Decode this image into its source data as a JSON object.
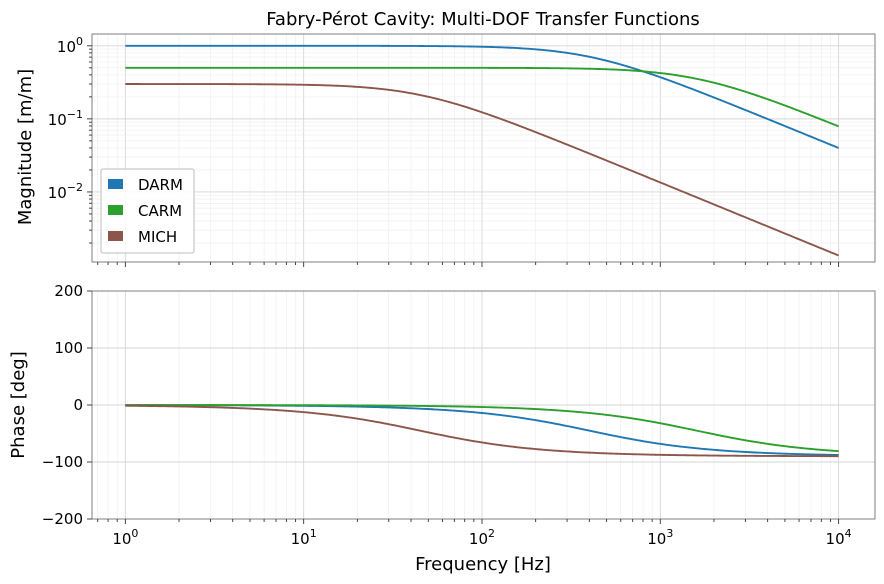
{
  "chart_data": [
    {
      "type": "line",
      "title": "Fabry-Pérot Cavity: Multi-DOF Transfer Functions",
      "xlabel": "",
      "ylabel": "Magnitude [m/m]",
      "xscale": "log",
      "yscale": "log",
      "xlim": [
        0.65,
        16000
      ],
      "ylim": [
        0.0011,
        1.45
      ],
      "yticks": [
        {
          "base": "10",
          "exp": "0",
          "value": 1
        },
        {
          "base": "10",
          "exp": "−1",
          "value": 0.1
        },
        {
          "base": "10",
          "exp": "−2",
          "value": 0.01
        }
      ],
      "grid": true,
      "legend": "lower-left",
      "series": [
        {
          "name": "DARM",
          "color": "#1f77b4",
          "gain": 1.0,
          "pole_hz": 400,
          "order": 1
        },
        {
          "name": "CARM",
          "color": "#2ca02c",
          "gain": 0.5,
          "pole_hz": 1600,
          "order": 1
        },
        {
          "name": "MICH",
          "color": "#8c564b",
          "gain": 0.3,
          "pole_hz": 45,
          "order": 1
        }
      ],
      "x": [
        1,
        10,
        100,
        300,
        1000,
        3000,
        10000
      ],
      "values_sampled": {
        "DARM": [
          1.0,
          1.0,
          0.97,
          0.8,
          0.37,
          0.13,
          0.04
        ],
        "CARM": [
          0.5,
          0.5,
          0.499,
          0.49,
          0.42,
          0.24,
          0.08
        ],
        "MICH": [
          0.3,
          0.29,
          0.12,
          0.045,
          0.0135,
          0.0045,
          0.00135
        ]
      }
    },
    {
      "type": "line",
      "title": "",
      "xlabel": "Frequency [Hz]",
      "ylabel": "Phase [deg]",
      "xscale": "log",
      "xlim": [
        0.65,
        16000
      ],
      "ylim": [
        -200,
        200
      ],
      "yticks": [
        "200",
        "100",
        "0",
        "−100",
        "−200"
      ],
      "xticks": [
        {
          "base": "10",
          "exp": "0",
          "value": 1
        },
        {
          "base": "10",
          "exp": "1",
          "value": 10
        },
        {
          "base": "10",
          "exp": "2",
          "value": 100
        },
        {
          "base": "10",
          "exp": "3",
          "value": 1000
        },
        {
          "base": "10",
          "exp": "4",
          "value": 10000
        }
      ],
      "grid": true,
      "series": [
        {
          "name": "DARM",
          "color": "#1f77b4",
          "pole_hz": 400
        },
        {
          "name": "CARM",
          "color": "#2ca02c",
          "pole_hz": 1600
        },
        {
          "name": "MICH",
          "color": "#8c564b",
          "pole_hz": 45
        }
      ],
      "x": [
        1,
        10,
        100,
        300,
        1000,
        3000,
        10000
      ],
      "values_sampled": {
        "DARM": [
          0,
          -1.4,
          -14,
          -37,
          -68,
          -82,
          -88
        ],
        "CARM": [
          0,
          -0.4,
          -3.6,
          -10.6,
          -32,
          -62,
          -81
        ],
        "MICH": [
          0,
          -12.5,
          -65,
          -81,
          -87,
          -89,
          -90
        ]
      }
    }
  ]
}
